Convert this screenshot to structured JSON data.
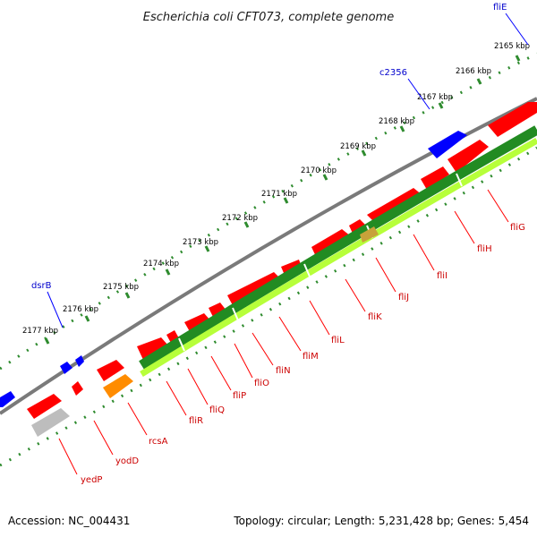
{
  "title": "Escherichia coli CFT073, complete genome",
  "footer": {
    "accession": "Accession: NC_004431",
    "summary": "Topology: circular; Length: 5,231,428 bp; Genes: 5,454"
  },
  "colors": {
    "background": "#ffffff",
    "backbone": "#8a8a8a",
    "gene_red": "#ff0000",
    "gene_blue": "#0000ff",
    "gene_orange": "#ff8c00",
    "gene_grey": "#bdbdbd",
    "operon_green": "#228b22",
    "operon_lime": "#b7ff3a",
    "tick_green": "#2e8b2e",
    "label_red": "#cc0000",
    "label_blue": "#0000cc"
  },
  "scale_labels": [
    "2165 kbp",
    "2166 kbp",
    "2167 kbp",
    "2168 kbp",
    "2169 kbp",
    "2170 kbp",
    "2171 kbp",
    "2172 kbp",
    "2173 kbp",
    "2174 kbp",
    "2175 kbp",
    "2176 kbp",
    "2177 kbp"
  ],
  "gene_labels_blue": [
    "fliE",
    "c2356",
    "dsrB"
  ],
  "gene_labels_red": [
    "fliG",
    "fliH",
    "fliI",
    "fliJ",
    "fliK",
    "fliL",
    "fliM",
    "fliN",
    "fliO",
    "fliP",
    "fliQ",
    "fliR",
    "rcsA",
    "yodD",
    "yedP"
  ]
}
